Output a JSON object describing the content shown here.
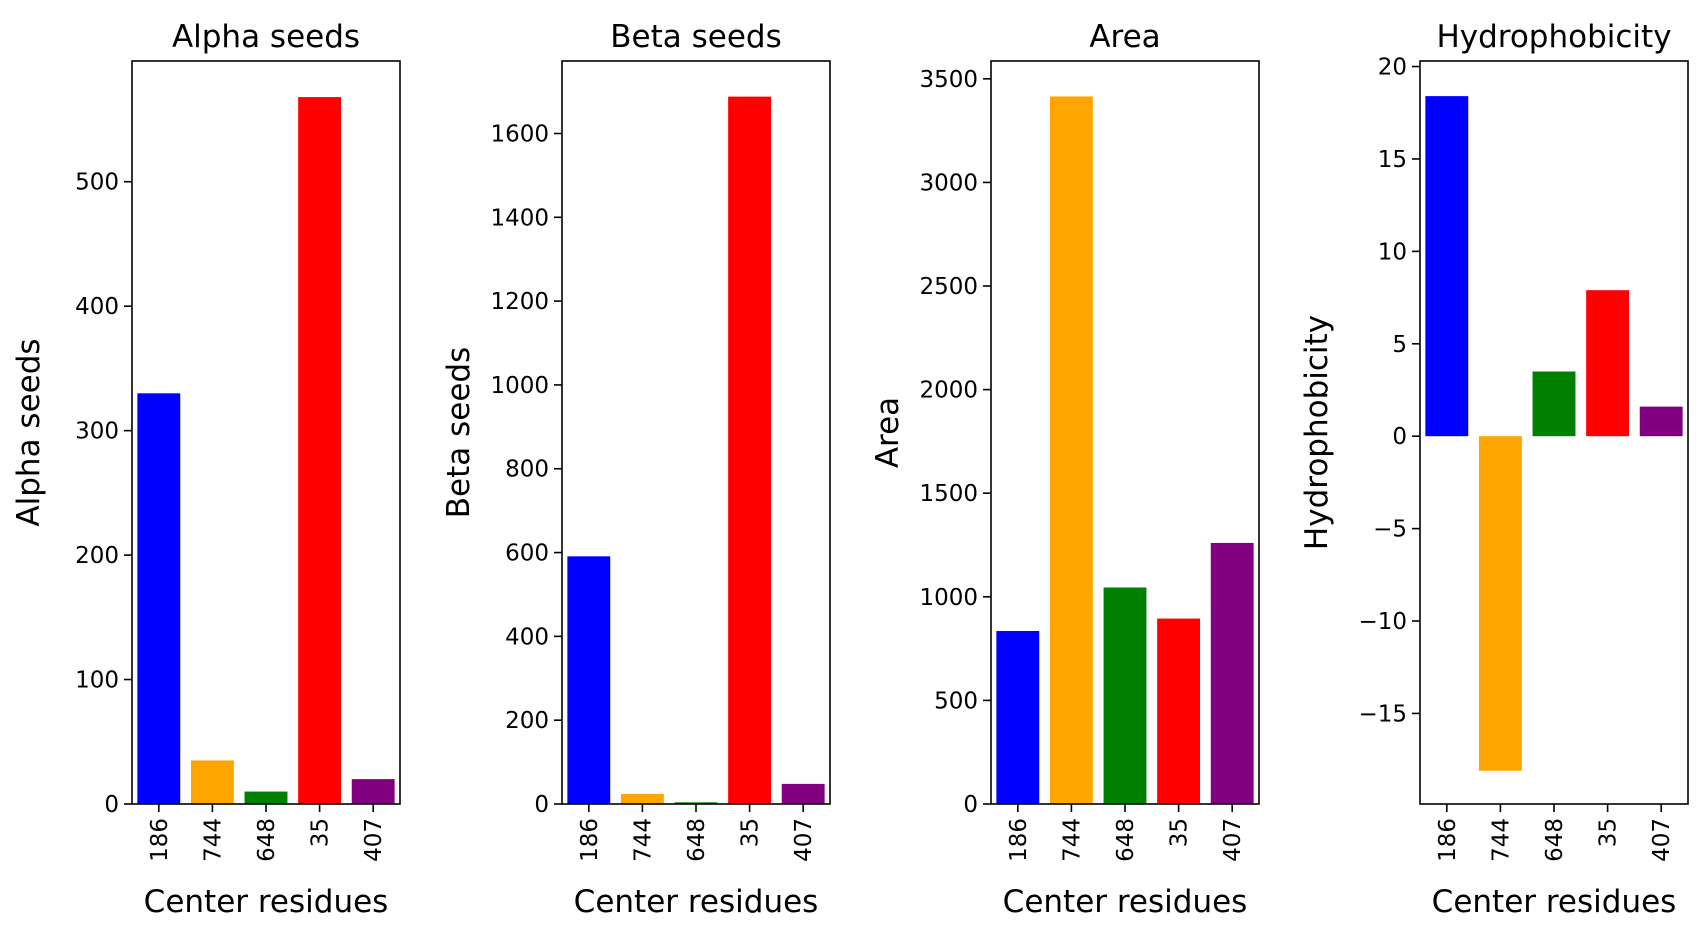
{
  "chart_data": [
    {
      "type": "bar",
      "title": "Alpha seeds",
      "xlabel": "Center residues",
      "ylabel": "Alpha seeds",
      "categories": [
        "186",
        "744",
        "648",
        "35",
        "407"
      ],
      "values": [
        330,
        35,
        10,
        568,
        20
      ],
      "colors": [
        "#0000ff",
        "#ffa500",
        "#008000",
        "#ff0000",
        "#800080"
      ],
      "ylim": [
        0,
        597
      ],
      "yticks": [
        0,
        100,
        200,
        300,
        400,
        500
      ],
      "ytick_labels": [
        "0",
        "100",
        "200",
        "300",
        "400",
        "500"
      ],
      "grid": false
    },
    {
      "type": "bar",
      "title": "Beta seeds",
      "xlabel": "Center residues",
      "ylabel": "Beta seeds",
      "categories": [
        "186",
        "744",
        "648",
        "35",
        "407"
      ],
      "values": [
        591,
        24,
        4,
        1688,
        48
      ],
      "colors": [
        "#0000ff",
        "#ffa500",
        "#008000",
        "#ff0000",
        "#800080"
      ],
      "ylim": [
        0,
        1773
      ],
      "yticks": [
        0,
        200,
        400,
        600,
        800,
        1000,
        1200,
        1400,
        1600
      ],
      "ytick_labels": [
        "0",
        "200",
        "400",
        "600",
        "800",
        "1000",
        "1200",
        "1400",
        "1600"
      ],
      "grid": false
    },
    {
      "type": "bar",
      "title": "Area",
      "xlabel": "Center residues",
      "ylabel": "Area",
      "categories": [
        "186",
        "744",
        "648",
        "35",
        "407"
      ],
      "values": [
        835,
        3415,
        1045,
        895,
        1260
      ],
      "colors": [
        "#0000ff",
        "#ffa500",
        "#008000",
        "#ff0000",
        "#800080"
      ],
      "ylim": [
        0,
        3586
      ],
      "yticks": [
        0,
        500,
        1000,
        1500,
        2000,
        2500,
        3000,
        3500
      ],
      "ytick_labels": [
        "0",
        "500",
        "1000",
        "1500",
        "2000",
        "2500",
        "3000",
        "3500"
      ],
      "grid": false
    },
    {
      "type": "bar",
      "title": "Hydrophobicity",
      "xlabel": "Center residues",
      "ylabel": "Hydrophobicity",
      "categories": [
        "186",
        "744",
        "648",
        "35",
        "407"
      ],
      "values": [
        18.4,
        -18.1,
        3.5,
        7.9,
        1.6
      ],
      "colors": [
        "#0000ff",
        "#ffa500",
        "#008000",
        "#ff0000",
        "#800080"
      ],
      "ylim": [
        -19.9,
        20.3
      ],
      "yticks": [
        -15,
        -10,
        -5,
        0,
        5,
        10,
        15,
        20
      ],
      "ytick_labels": [
        "−15",
        "−10",
        "−5",
        "0",
        "5",
        "10",
        "15",
        "20"
      ],
      "grid": false
    }
  ]
}
